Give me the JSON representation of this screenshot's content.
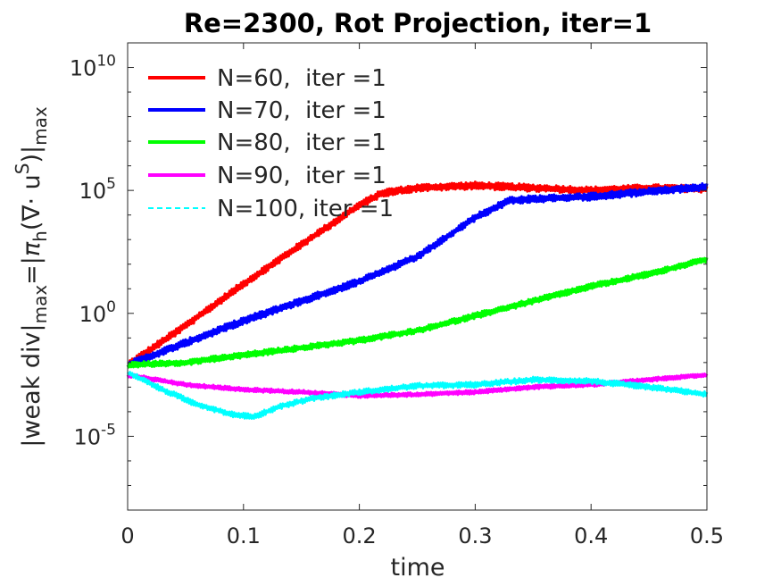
{
  "chart_data": {
    "type": "line",
    "title": "Re=2300, Rot Projection, iter=1",
    "xlabel": "time",
    "ylabel_main": "|weak div|",
    "ylabel_sub1": "max",
    "ylabel_eq": "=|",
    "ylabel_pi": "π",
    "ylabel_sub2": "h",
    "ylabel_paren": "(∇· u",
    "ylabel_sup": "S",
    "ylabel_close": ")|",
    "ylabel_sub3": "max",
    "xlim": [
      0,
      0.5
    ],
    "ylim_log10": [
      -8,
      11
    ],
    "x_ticks": [
      0,
      0.1,
      0.2,
      0.3,
      0.4,
      0.5
    ],
    "x_tick_labels": [
      "0",
      "0.1",
      "0.2",
      "0.3",
      "0.4",
      "0.5"
    ],
    "y_ticks_log10": [
      -5,
      0,
      5,
      10
    ],
    "y_tick_bases": [
      "10",
      "10",
      "10",
      "10"
    ],
    "y_tick_exps": [
      "-5",
      "0",
      "5",
      "10"
    ],
    "grid": false,
    "legend_position": "top-left",
    "series": [
      {
        "name": "N=60,  iter =1",
        "color": "#ff0000",
        "style": "solid",
        "x": [
          0,
          0.05,
          0.1,
          0.15,
          0.2,
          0.22,
          0.25,
          0.3,
          0.35,
          0.4,
          0.45,
          0.5
        ],
        "log10_y": [
          -2.1,
          -0.5,
          1.2,
          2.8,
          4.4,
          4.9,
          5.1,
          5.2,
          5.1,
          5.0,
          5.1,
          5.05
        ],
        "noise": 0.15
      },
      {
        "name": "N=70,  iter =1",
        "color": "#0000ff",
        "style": "solid",
        "x": [
          0,
          0.05,
          0.1,
          0.15,
          0.2,
          0.25,
          0.3,
          0.33,
          0.35,
          0.4,
          0.45,
          0.5
        ],
        "log10_y": [
          -2.1,
          -1.2,
          -0.3,
          0.5,
          1.3,
          2.3,
          3.9,
          4.6,
          4.65,
          4.75,
          4.95,
          5.15
        ],
        "noise": 0.15
      },
      {
        "name": "N=80,  iter =1",
        "color": "#00ff00",
        "style": "solid",
        "x": [
          0,
          0.05,
          0.1,
          0.15,
          0.2,
          0.25,
          0.3,
          0.35,
          0.4,
          0.45,
          0.5
        ],
        "log10_y": [
          -2.1,
          -2.0,
          -1.7,
          -1.4,
          -1.1,
          -0.7,
          -0.1,
          0.5,
          1.1,
          1.6,
          2.2
        ],
        "noise": 0.12
      },
      {
        "name": "N=90,  iter =1",
        "color": "#ff00ff",
        "style": "solid",
        "x": [
          0,
          0.05,
          0.1,
          0.15,
          0.2,
          0.25,
          0.3,
          0.35,
          0.4,
          0.45,
          0.5
        ],
        "log10_y": [
          -2.5,
          -2.9,
          -3.1,
          -3.2,
          -3.35,
          -3.3,
          -3.2,
          -3.0,
          -2.9,
          -2.7,
          -2.5
        ],
        "noise": 0.08
      },
      {
        "name": "N=100, iter =1",
        "color": "#00ffff",
        "style": "dashed",
        "x": [
          0,
          0.03,
          0.06,
          0.09,
          0.11,
          0.13,
          0.16,
          0.2,
          0.25,
          0.3,
          0.35,
          0.4,
          0.45,
          0.5
        ],
        "log10_y": [
          -2.4,
          -3.1,
          -3.7,
          -4.1,
          -4.2,
          -3.8,
          -3.45,
          -3.2,
          -2.95,
          -2.9,
          -2.7,
          -2.75,
          -3.0,
          -3.3
        ],
        "noise": 0.12
      }
    ]
  }
}
